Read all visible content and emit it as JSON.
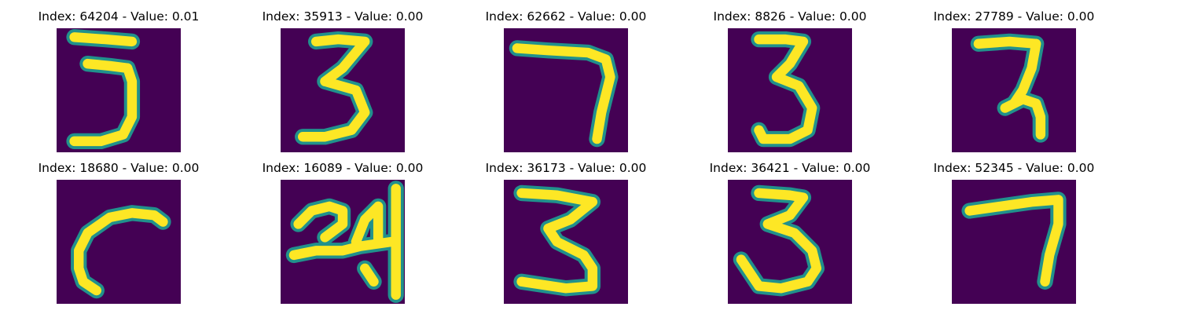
{
  "colors": {
    "background": "#440154",
    "stroke_core": "#fde725",
    "stroke_edge": "#21918c"
  },
  "panels": [
    {
      "title": "Index: 64204 - Value: 0.01",
      "glyph": "three-a"
    },
    {
      "title": "Index: 35913 - Value: 0.00",
      "glyph": "three-b"
    },
    {
      "title": "Index: 62662 - Value: 0.00",
      "glyph": "seven-a"
    },
    {
      "title": "Index: 8826 - Value: 0.00",
      "glyph": "three-c"
    },
    {
      "title": "Index: 27789 - Value: 0.00",
      "glyph": "seven-b"
    },
    {
      "title": "Index: 18680 - Value: 0.00",
      "glyph": "hook"
    },
    {
      "title": "Index: 16089 - Value: 0.00",
      "glyph": "twenty-four"
    },
    {
      "title": "Index: 36173 - Value: 0.00",
      "glyph": "three-d"
    },
    {
      "title": "Index: 36421 - Value: 0.00",
      "glyph": "three-e"
    },
    {
      "title": "Index: 52345 - Value: 0.00",
      "glyph": "seven-c"
    }
  ]
}
